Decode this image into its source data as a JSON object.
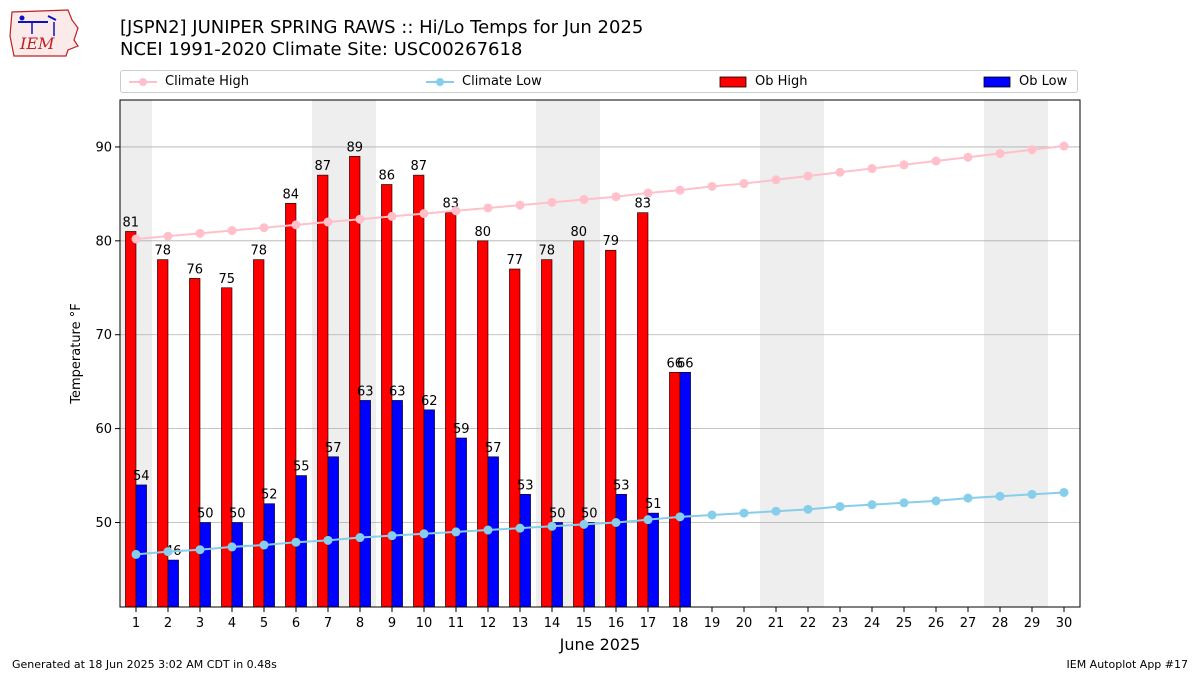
{
  "header": {
    "title_line1": "[JSPN2] JUNIPER SPRING RAWS :: Hi/Lo Temps for Jun 2025",
    "title_line2": "NCEI 1991-2020 Climate Site: USC00267618",
    "logo_text": "IEM"
  },
  "footer": {
    "generated": "Generated at 18 Jun 2025 3:02 AM CDT in 0.48s",
    "app": "IEM Autoplot App #17"
  },
  "colors": {
    "climate_high": "#ffc0cb",
    "climate_low": "#87ceeb",
    "ob_high": "#ff0000",
    "ob_low": "#0000ff",
    "weekend_shade": "#eeeeee",
    "grid": "#b0b0b0"
  },
  "chart_data": {
    "type": "bar",
    "xlabel": "June 2025",
    "ylabel": "Temperature °F",
    "ylim": [
      41,
      95
    ],
    "yticks": [
      50,
      60,
      70,
      80,
      90
    ],
    "grid": "horizontal",
    "legend_position": "top",
    "days": [
      1,
      2,
      3,
      4,
      5,
      6,
      7,
      8,
      9,
      10,
      11,
      12,
      13,
      14,
      15,
      16,
      17,
      18,
      19,
      20,
      21,
      22,
      23,
      24,
      25,
      26,
      27,
      28,
      29,
      30
    ],
    "weekend_days": [
      1,
      7,
      8,
      14,
      15,
      21,
      22,
      28,
      29
    ],
    "series": [
      {
        "name": "Climate High",
        "kind": "line",
        "color": "#ffc0cb",
        "values": [
          80.2,
          80.5,
          80.8,
          81.1,
          81.4,
          81.7,
          82.0,
          82.3,
          82.6,
          82.9,
          83.2,
          83.5,
          83.8,
          84.1,
          84.4,
          84.7,
          85.1,
          85.4,
          85.8,
          86.1,
          86.5,
          86.9,
          87.3,
          87.7,
          88.1,
          88.5,
          88.9,
          89.3,
          89.7,
          90.1
        ]
      },
      {
        "name": "Climate Low",
        "kind": "line",
        "color": "#87ceeb",
        "values": [
          46.6,
          46.9,
          47.1,
          47.4,
          47.6,
          47.9,
          48.1,
          48.4,
          48.6,
          48.8,
          49.0,
          49.2,
          49.4,
          49.6,
          49.8,
          50.0,
          50.3,
          50.6,
          50.8,
          51.0,
          51.2,
          51.4,
          51.7,
          51.9,
          52.1,
          52.3,
          52.6,
          52.8,
          53.0,
          53.2
        ]
      },
      {
        "name": "Ob High",
        "kind": "bar",
        "color": "#ff0000",
        "values": [
          81,
          78,
          76,
          75,
          78,
          84,
          87,
          89,
          86,
          87,
          83,
          80,
          77,
          78,
          80,
          79,
          83,
          66
        ]
      },
      {
        "name": "Ob Low",
        "kind": "bar",
        "color": "#0000ff",
        "values": [
          54,
          46,
          50,
          50,
          52,
          55,
          57,
          63,
          63,
          62,
          59,
          57,
          53,
          50,
          50,
          53,
          51,
          66
        ]
      }
    ]
  }
}
